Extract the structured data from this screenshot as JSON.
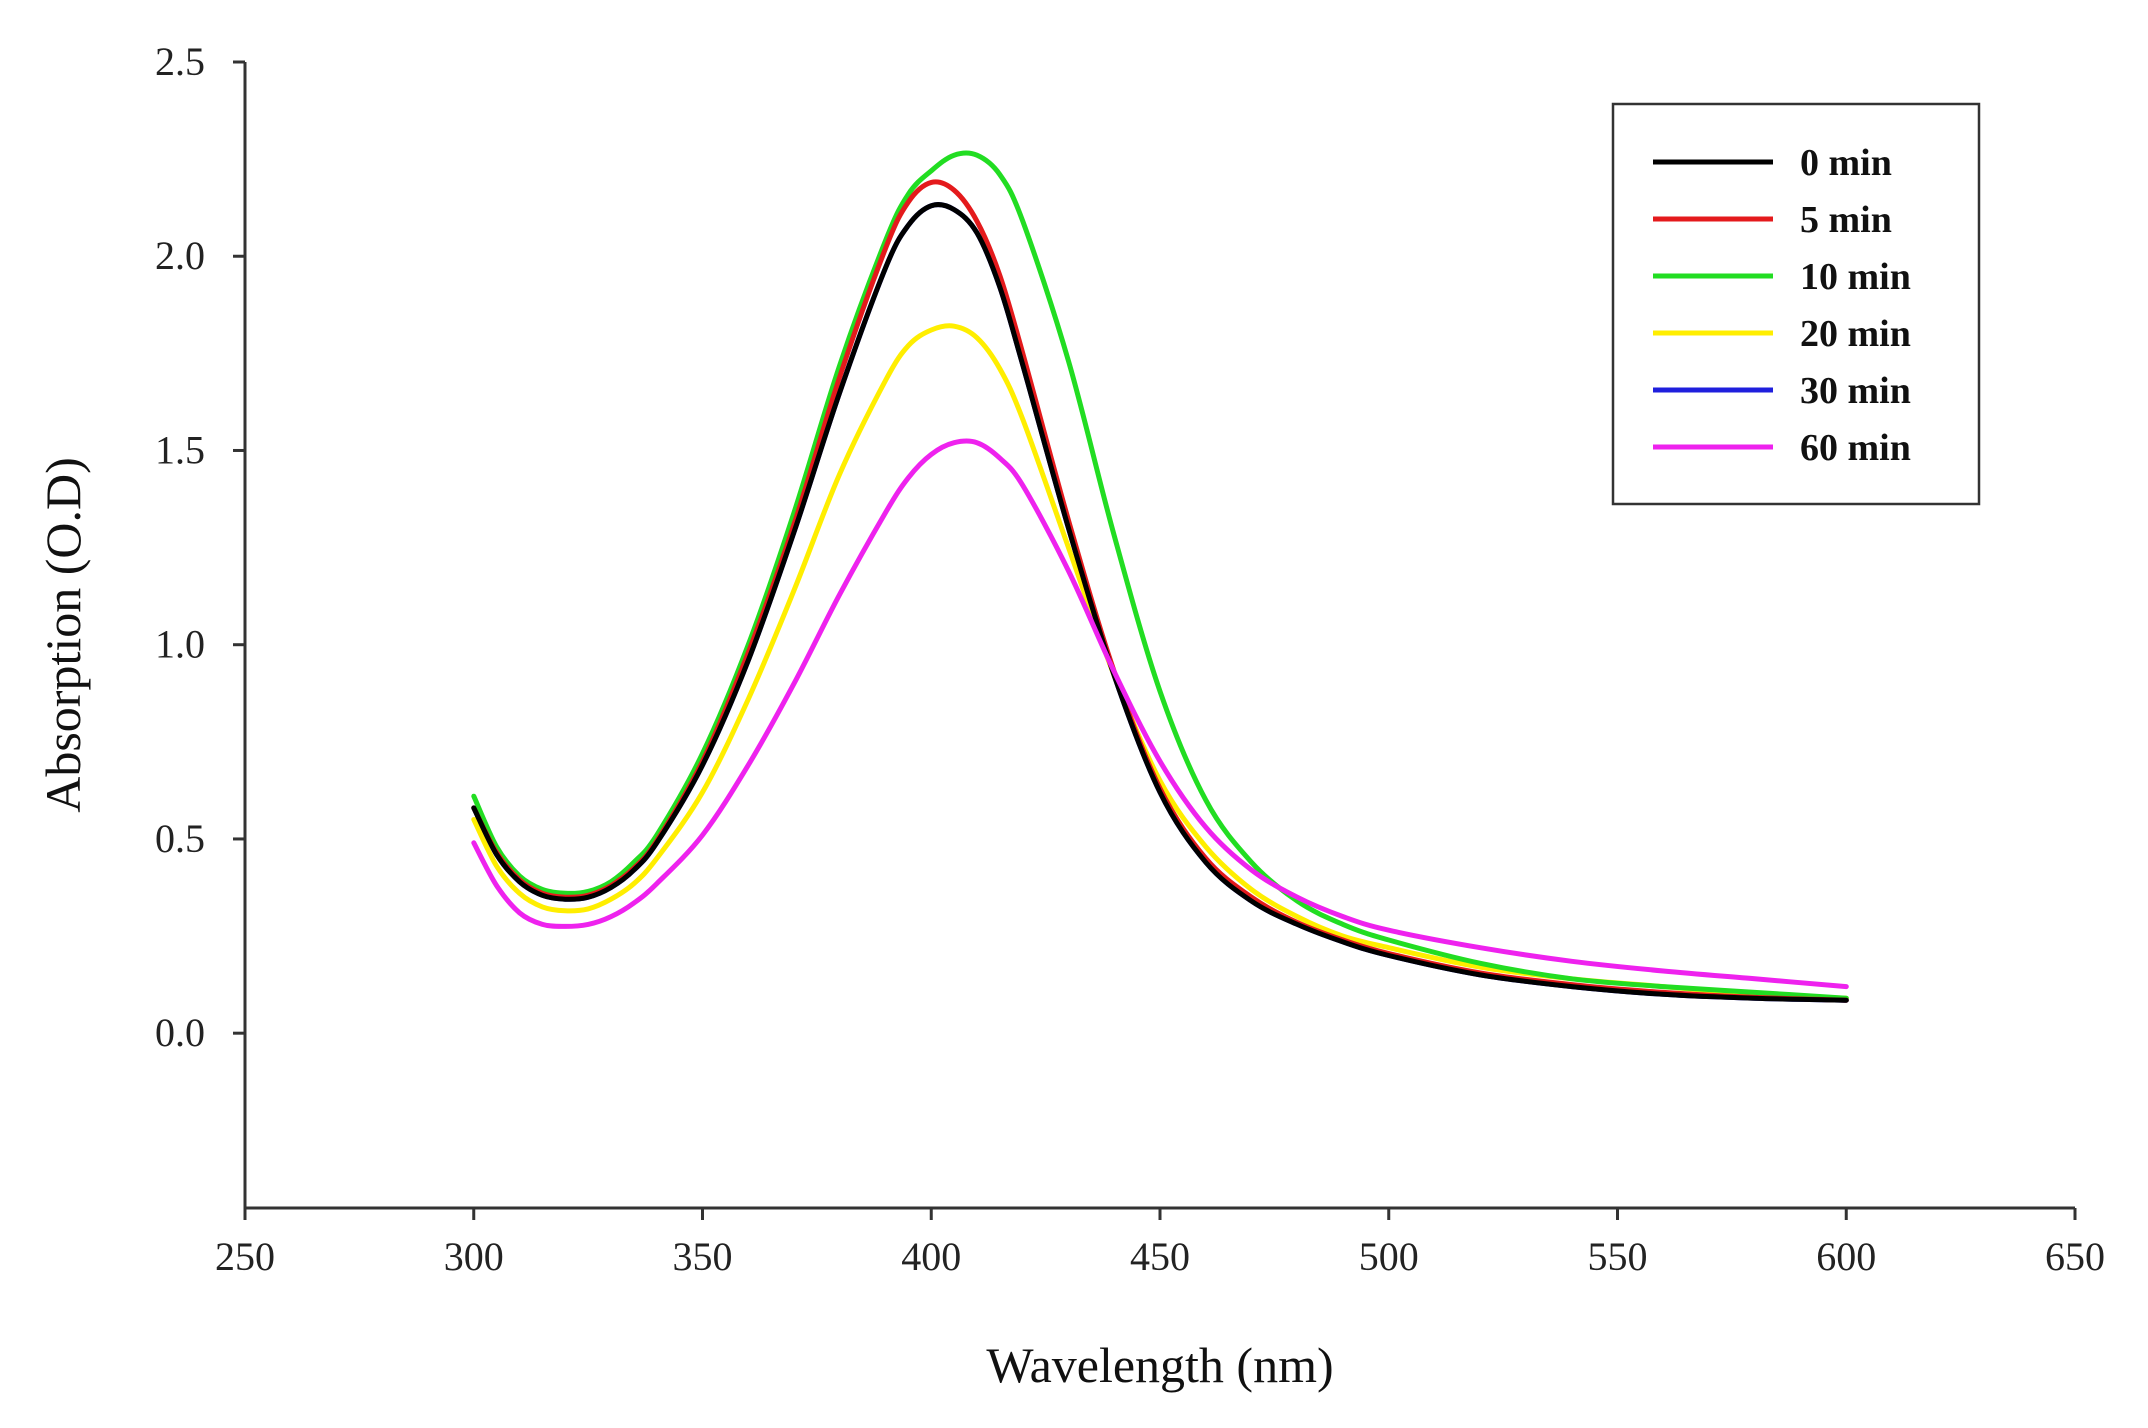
{
  "chart_data": {
    "type": "line",
    "title": "",
    "xlabel": "Wavelength (nm)",
    "ylabel": "Absorption (O.D)",
    "xlim": [
      250,
      650
    ],
    "ylim": [
      -0.45,
      2.5
    ],
    "xticks": [
      250,
      300,
      350,
      400,
      450,
      500,
      550,
      600,
      650
    ],
    "xtick_labels": [
      "250",
      "300",
      "350",
      "400",
      "450",
      "500",
      "550",
      "600",
      "650"
    ],
    "yticks": [
      0.0,
      0.5,
      1.0,
      1.5,
      2.0,
      2.5
    ],
    "ytick_labels": [
      "0.0",
      "0.5",
      "1.0",
      "1.5",
      "2.0",
      "2.5"
    ],
    "grid": false,
    "legend_position": "top-right",
    "x": [
      300,
      305,
      310,
      315,
      320,
      325,
      330,
      335,
      340,
      350,
      360,
      370,
      380,
      390,
      395,
      400,
      405,
      410,
      415,
      420,
      430,
      440,
      450,
      460,
      470,
      480,
      490,
      500,
      520,
      540,
      560,
      580,
      600
    ],
    "series": [
      {
        "name": "0 min",
        "color": "#000000",
        "values": [
          0.58,
          0.46,
          0.39,
          0.355,
          0.345,
          0.35,
          0.375,
          0.42,
          0.49,
          0.69,
          0.96,
          1.29,
          1.65,
          1.97,
          2.08,
          2.13,
          2.12,
          2.06,
          1.92,
          1.72,
          1.3,
          0.92,
          0.62,
          0.44,
          0.34,
          0.28,
          0.235,
          0.2,
          0.15,
          0.12,
          0.1,
          0.09,
          0.085
        ]
      },
      {
        "name": "5 min",
        "color": "#e41a1c",
        "values": [
          0.58,
          0.465,
          0.395,
          0.36,
          0.35,
          0.355,
          0.38,
          0.425,
          0.495,
          0.7,
          0.98,
          1.31,
          1.69,
          2.02,
          2.14,
          2.19,
          2.17,
          2.09,
          1.95,
          1.75,
          1.32,
          0.93,
          0.63,
          0.45,
          0.35,
          0.285,
          0.24,
          0.205,
          0.155,
          0.125,
          0.105,
          0.092,
          0.085
        ]
      },
      {
        "name": "10 min",
        "color": "#22dd22",
        "values": [
          0.61,
          0.48,
          0.405,
          0.37,
          0.36,
          0.365,
          0.39,
          0.44,
          0.51,
          0.72,
          1.0,
          1.34,
          1.72,
          2.04,
          2.16,
          2.22,
          2.26,
          2.26,
          2.21,
          2.09,
          1.73,
          1.28,
          0.88,
          0.6,
          0.44,
          0.34,
          0.28,
          0.24,
          0.18,
          0.14,
          0.12,
          0.105,
          0.09
        ]
      },
      {
        "name": "20 min",
        "color": "#ffee00",
        "values": [
          0.55,
          0.43,
          0.36,
          0.325,
          0.315,
          0.32,
          0.345,
          0.385,
          0.45,
          0.62,
          0.86,
          1.14,
          1.44,
          1.68,
          1.77,
          1.81,
          1.82,
          1.79,
          1.71,
          1.58,
          1.25,
          0.92,
          0.65,
          0.48,
          0.37,
          0.3,
          0.25,
          0.22,
          0.17,
          0.14,
          0.12,
          0.1,
          0.09
        ]
      },
      {
        "name": "30 min",
        "color": "#1f1fdd",
        "values": [
          0.58,
          0.46,
          0.39,
          0.355,
          0.345,
          0.35,
          0.375,
          0.42,
          0.49,
          0.69,
          0.96,
          1.29,
          1.65,
          1.97,
          2.08,
          2.13,
          2.12,
          2.06,
          1.92,
          1.72,
          1.3,
          0.92,
          0.62,
          0.44,
          0.34,
          0.28,
          0.235,
          0.2,
          0.15,
          0.12,
          0.1,
          0.09,
          0.085
        ]
      },
      {
        "name": "60 min",
        "color": "#ee22ee",
        "values": [
          0.49,
          0.38,
          0.31,
          0.28,
          0.275,
          0.28,
          0.3,
          0.335,
          0.385,
          0.51,
          0.69,
          0.9,
          1.13,
          1.34,
          1.43,
          1.49,
          1.52,
          1.52,
          1.48,
          1.41,
          1.19,
          0.93,
          0.7,
          0.53,
          0.42,
          0.35,
          0.3,
          0.265,
          0.22,
          0.185,
          0.16,
          0.14,
          0.12
        ]
      }
    ]
  }
}
